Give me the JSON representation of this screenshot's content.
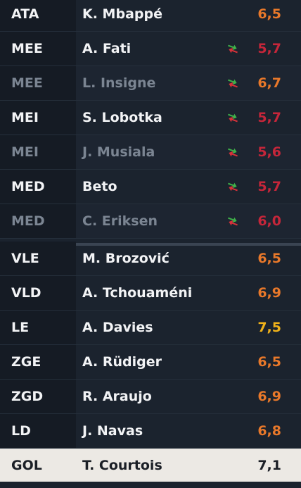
{
  "colors": {
    "rating_orange": "#e8782a",
    "rating_red": "#c5263a",
    "rating_yellow": "#f0b21a",
    "rating_dark": "#1b1f26",
    "sub_arrow_green": "#3fb24a",
    "sub_arrow_red": "#d8323a"
  },
  "players": [
    {
      "pos": "ATA",
      "name": "K. Mbappé",
      "rating": "6,5",
      "rating_color": "#e8782a",
      "sub_icon": false,
      "subdued": false
    },
    {
      "pos": "MEE",
      "name": "A. Fati",
      "rating": "5,7",
      "rating_color": "#c5263a",
      "sub_icon": true,
      "subdued": false
    },
    {
      "pos": "MEE",
      "name": "L. Insigne",
      "rating": "6,7",
      "rating_color": "#e8782a",
      "sub_icon": true,
      "subdued": true
    },
    {
      "pos": "MEI",
      "name": "S. Lobotka",
      "rating": "5,7",
      "rating_color": "#c5263a",
      "sub_icon": true,
      "subdued": false
    },
    {
      "pos": "MEI",
      "name": "J. Musiala",
      "rating": "5,6",
      "rating_color": "#c5263a",
      "sub_icon": true,
      "subdued": true
    },
    {
      "pos": "MED",
      "name": "Beto",
      "rating": "5,7",
      "rating_color": "#c5263a",
      "sub_icon": true,
      "subdued": false
    },
    {
      "pos": "MED",
      "name": "C. Eriksen",
      "rating": "6,0",
      "rating_color": "#c5263a",
      "sub_icon": true,
      "subdued": true
    },
    {
      "pos": "VLE",
      "name": "M. Brozović",
      "rating": "6,5",
      "rating_color": "#e8782a",
      "sub_icon": false,
      "subdued": false
    },
    {
      "pos": "VLD",
      "name": "A. Tchouaméni",
      "rating": "6,9",
      "rating_color": "#e8782a",
      "sub_icon": false,
      "subdued": false
    },
    {
      "pos": "LE",
      "name": "A. Davies",
      "rating": "7,5",
      "rating_color": "#f0b21a",
      "sub_icon": false,
      "subdued": false
    },
    {
      "pos": "ZGE",
      "name": "A. Rüdiger",
      "rating": "6,5",
      "rating_color": "#e8782a",
      "sub_icon": false,
      "subdued": false
    },
    {
      "pos": "ZGD",
      "name": "R. Araujo",
      "rating": "6,9",
      "rating_color": "#e8782a",
      "sub_icon": false,
      "subdued": false
    },
    {
      "pos": "LD",
      "name": "J. Navas",
      "rating": "6,8",
      "rating_color": "#e8782a",
      "sub_icon": false,
      "subdued": false
    },
    {
      "pos": "GOL",
      "name": "T. Courtois",
      "rating": "7,1",
      "rating_color": "#1b1f26",
      "sub_icon": false,
      "subdued": false,
      "selected": true
    }
  ]
}
